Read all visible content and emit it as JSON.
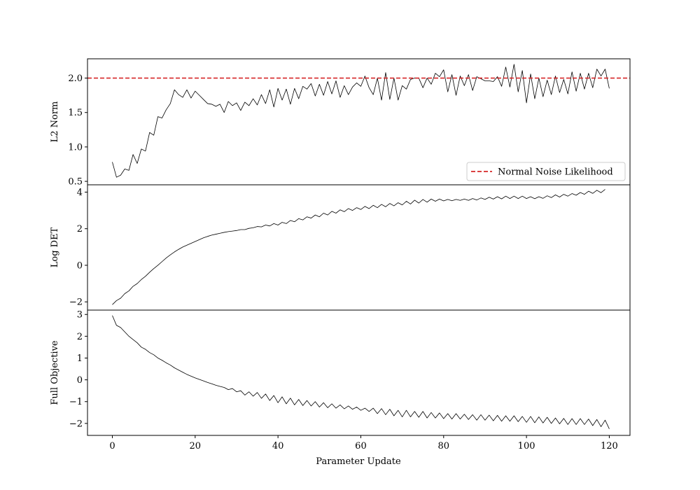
{
  "chart_data": {
    "type": "line",
    "shared_x": {
      "xlabel": "Parameter Update",
      "xlim": [
        -6,
        125
      ],
      "xticks": [
        0,
        20,
        40,
        60,
        80,
        100,
        120
      ]
    },
    "panels": [
      {
        "id": "l2",
        "ylabel": "L2 Norm",
        "ylim": [
          0.45,
          2.28
        ],
        "yticks": [
          0.5,
          1.0,
          1.5,
          2.0
        ],
        "ytick_labels": [
          "0.5",
          "1.0",
          "1.5",
          "2.0"
        ],
        "hline": {
          "y": 2.0,
          "color": "#d62728",
          "style": "dashed"
        },
        "legend": {
          "label": "Normal Noise Likelihood",
          "location": "lower-right"
        },
        "series": {
          "color": "#000000",
          "values": [
            0.78,
            0.56,
            0.59,
            0.68,
            0.66,
            0.89,
            0.76,
            0.97,
            0.94,
            1.21,
            1.17,
            1.44,
            1.42,
            1.54,
            1.63,
            1.83,
            1.76,
            1.72,
            1.83,
            1.71,
            1.81,
            1.75,
            1.69,
            1.63,
            1.62,
            1.59,
            1.62,
            1.5,
            1.66,
            1.6,
            1.64,
            1.53,
            1.65,
            1.6,
            1.7,
            1.61,
            1.76,
            1.63,
            1.83,
            1.58,
            1.85,
            1.68,
            1.84,
            1.62,
            1.85,
            1.7,
            1.88,
            1.84,
            1.92,
            1.74,
            1.91,
            1.75,
            1.95,
            1.77,
            1.96,
            1.72,
            1.89,
            1.76,
            1.87,
            1.93,
            1.88,
            2.03,
            1.86,
            1.76,
            2.0,
            1.68,
            2.08,
            1.69,
            2.0,
            1.68,
            1.89,
            1.84,
            1.98,
            2.0,
            2.0,
            1.86,
            2.0,
            1.91,
            2.07,
            2.02,
            2.12,
            1.8,
            2.05,
            1.75,
            2.03,
            1.89,
            2.05,
            1.82,
            2.02,
            1.99,
            1.96,
            1.96,
            1.95,
            2.02,
            1.88,
            2.16,
            1.87,
            2.2,
            1.8,
            2.11,
            1.64,
            2.06,
            1.7,
            2.0,
            1.73,
            1.97,
            1.76,
            2.03,
            1.79,
            1.98,
            1.77,
            2.09,
            1.81,
            2.07,
            1.84,
            2.07,
            1.86,
            2.13,
            2.03,
            2.13,
            1.85
          ]
        }
      },
      {
        "id": "logdet",
        "ylabel": "Log DET",
        "ylim": [
          -2.45,
          4.4
        ],
        "yticks": [
          -2,
          0,
          2,
          4
        ],
        "ytick_labels": [
          "−2",
          "0",
          "2",
          "4"
        ],
        "series": {
          "color": "#000000",
          "values": [
            -2.15,
            -1.93,
            -1.8,
            -1.55,
            -1.4,
            -1.15,
            -1.0,
            -0.78,
            -0.6,
            -0.38,
            -0.18,
            0.0,
            0.2,
            0.4,
            0.57,
            0.73,
            0.87,
            1.0,
            1.1,
            1.2,
            1.3,
            1.4,
            1.5,
            1.58,
            1.65,
            1.7,
            1.75,
            1.8,
            1.84,
            1.87,
            1.9,
            1.95,
            1.95,
            2.02,
            2.05,
            2.12,
            2.1,
            2.2,
            2.15,
            2.28,
            2.2,
            2.35,
            2.28,
            2.45,
            2.38,
            2.55,
            2.48,
            2.65,
            2.58,
            2.75,
            2.65,
            2.85,
            2.75,
            2.95,
            2.85,
            3.03,
            2.93,
            3.1,
            3.0,
            3.15,
            3.05,
            3.22,
            3.1,
            3.28,
            3.15,
            3.33,
            3.2,
            3.38,
            3.25,
            3.42,
            3.3,
            3.5,
            3.35,
            3.56,
            3.4,
            3.6,
            3.45,
            3.62,
            3.5,
            3.62,
            3.52,
            3.6,
            3.53,
            3.6,
            3.55,
            3.62,
            3.55,
            3.65,
            3.57,
            3.68,
            3.6,
            3.72,
            3.62,
            3.75,
            3.63,
            3.78,
            3.65,
            3.78,
            3.65,
            3.78,
            3.65,
            3.75,
            3.64,
            3.75,
            3.66,
            3.8,
            3.7,
            3.85,
            3.73,
            3.88,
            3.78,
            3.92,
            3.83,
            3.98,
            3.88,
            4.05,
            3.93,
            4.1,
            3.97,
            4.15
          ]
        }
      },
      {
        "id": "full",
        "ylabel": "Full Objective",
        "ylim": [
          -2.55,
          3.2
        ],
        "yticks": [
          -2,
          -1,
          0,
          1,
          2,
          3
        ],
        "ytick_labels": [
          "−2",
          "−1",
          "0",
          "1",
          "2",
          "3"
        ],
        "series": {
          "color": "#000000",
          "values": [
            2.95,
            2.5,
            2.4,
            2.2,
            2.0,
            1.85,
            1.7,
            1.5,
            1.4,
            1.25,
            1.15,
            1.0,
            0.9,
            0.78,
            0.68,
            0.55,
            0.45,
            0.35,
            0.25,
            0.17,
            0.09,
            0.02,
            -0.05,
            -0.12,
            -0.18,
            -0.25,
            -0.3,
            -0.35,
            -0.45,
            -0.4,
            -0.55,
            -0.5,
            -0.7,
            -0.55,
            -0.75,
            -0.58,
            -0.85,
            -0.65,
            -0.95,
            -0.72,
            -1.05,
            -0.78,
            -1.1,
            -0.84,
            -1.15,
            -0.9,
            -1.18,
            -0.95,
            -1.2,
            -1.0,
            -1.25,
            -1.05,
            -1.28,
            -1.1,
            -1.3,
            -1.15,
            -1.33,
            -1.2,
            -1.35,
            -1.25,
            -1.4,
            -1.3,
            -1.45,
            -1.3,
            -1.55,
            -1.32,
            -1.6,
            -1.35,
            -1.65,
            -1.4,
            -1.7,
            -1.4,
            -1.7,
            -1.45,
            -1.72,
            -1.45,
            -1.75,
            -1.5,
            -1.75,
            -1.52,
            -1.78,
            -1.55,
            -1.8,
            -1.55,
            -1.8,
            -1.58,
            -1.82,
            -1.6,
            -1.85,
            -1.6,
            -1.85,
            -1.62,
            -1.88,
            -1.63,
            -1.9,
            -1.65,
            -1.9,
            -1.65,
            -1.92,
            -1.68,
            -1.95,
            -1.68,
            -1.97,
            -1.7,
            -1.98,
            -1.72,
            -2.0,
            -1.75,
            -2.02,
            -1.77,
            -2.05,
            -1.78,
            -2.05,
            -1.78,
            -2.05,
            -1.8,
            -2.1,
            -1.82,
            -2.15,
            -1.85,
            -2.25
          ]
        }
      }
    ]
  }
}
